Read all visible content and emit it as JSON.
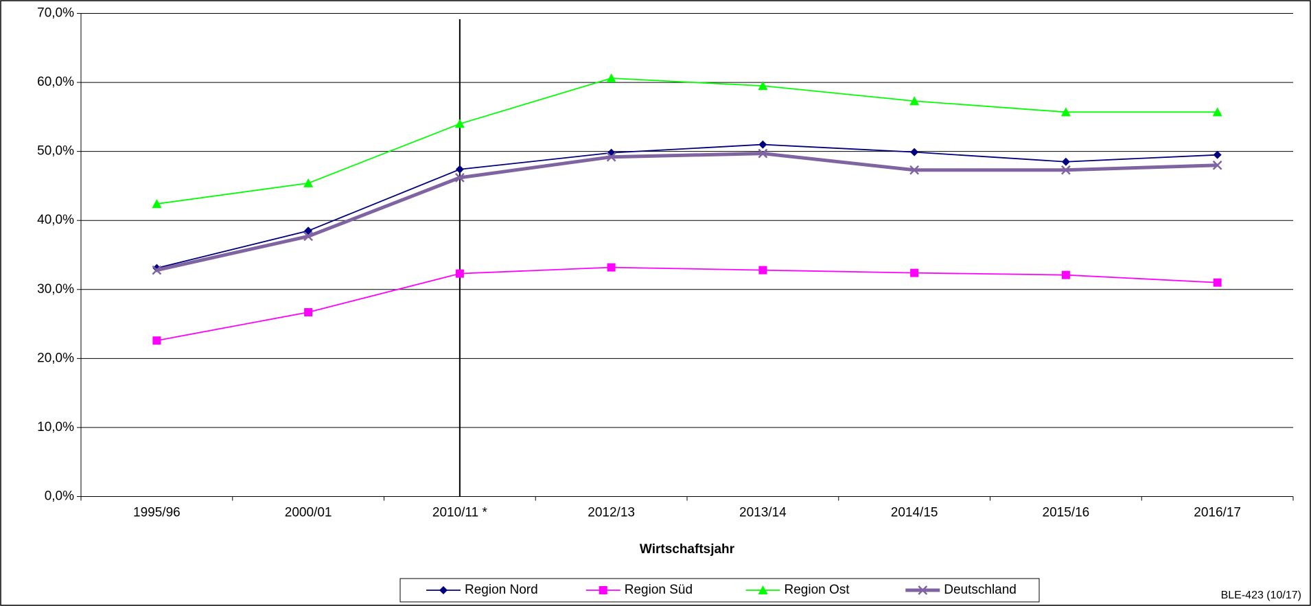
{
  "chart_data": {
    "type": "line",
    "x_label": "Wirtschaftsjahr",
    "annotation": "BLE-423 (10/17)",
    "categories": [
      "1995/96",
      "2000/01",
      "2010/11 *",
      "2012/13",
      "2013/14",
      "2014/15",
      "2015/16",
      "2016/17"
    ],
    "series": [
      {
        "name": "Region Nord",
        "color": "#000080",
        "marker": "diamond",
        "values": [
          33.1,
          38.5,
          47.4,
          49.8,
          51.0,
          49.9,
          48.5,
          49.5
        ]
      },
      {
        "name": "Region Süd",
        "color": "#ff00ff",
        "marker": "square",
        "values": [
          22.6,
          26.7,
          32.3,
          33.2,
          32.8,
          32.4,
          32.1,
          31.0
        ]
      },
      {
        "name": "Region Ost",
        "color": "#00ff00",
        "marker": "triangle",
        "values": [
          42.4,
          45.4,
          54.0,
          60.6,
          59.5,
          57.3,
          55.7,
          55.7
        ]
      },
      {
        "name": "Deutschland",
        "color": "#8064a2",
        "marker": "x",
        "values": [
          32.8,
          37.7,
          46.2,
          49.2,
          49.7,
          47.3,
          47.3,
          48.0
        ]
      }
    ],
    "ylim": [
      0,
      70
    ],
    "yticks": [
      {
        "value": 0,
        "label": "0,0%"
      },
      {
        "value": 10,
        "label": "10,0%"
      },
      {
        "value": 20,
        "label": "20,0%"
      },
      {
        "value": 30,
        "label": "30,0%"
      },
      {
        "value": 40,
        "label": "40,0%"
      },
      {
        "value": 50,
        "label": "50,0%"
      },
      {
        "value": 60,
        "label": "60,0%"
      },
      {
        "value": 70,
        "label": "70,0%"
      }
    ],
    "grid": true,
    "legend": "bottom"
  }
}
